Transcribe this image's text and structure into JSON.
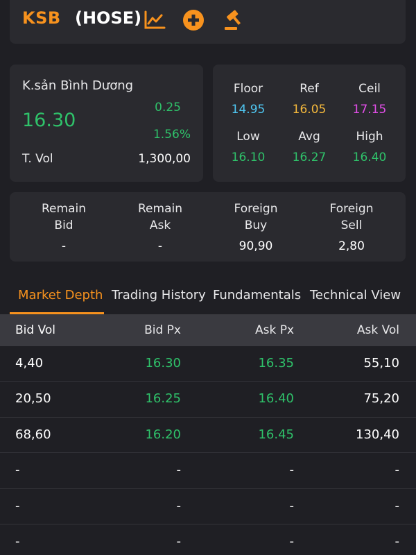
{
  "header": {
    "ticker": "KSB",
    "exchange": "(HOSE)",
    "icons": [
      "chart-icon",
      "add-circle-icon",
      "auction-gavel-icon"
    ],
    "accent_color": "#f7921e"
  },
  "quote": {
    "company": "K.sản Bình Dương",
    "price": "16.30",
    "change": "0.25",
    "change_pct": "1.56%",
    "tvol_label": "T. Vol",
    "tvol_value": "1,300,00"
  },
  "stats": {
    "floor_label": "Floor",
    "floor": "14.95",
    "ref_label": "Ref",
    "ref": "16.05",
    "ceil_label": "Ceil",
    "ceil": "17.15",
    "low_label": "Low",
    "low": "16.10",
    "avg_label": "Avg",
    "avg": "16.27",
    "high_label": "High",
    "high": "16.40"
  },
  "remain": {
    "remain_bid_label_1": "Remain",
    "remain_bid_label_2": "Bid",
    "remain_bid": "-",
    "remain_ask_label_1": "Remain",
    "remain_ask_label_2": "Ask",
    "remain_ask": "-",
    "foreign_buy_label_1": "Foreign",
    "foreign_buy_label_2": "Buy",
    "foreign_buy": "90,90",
    "foreign_sell_label_1": "Foreign",
    "foreign_sell_label_2": "Sell",
    "foreign_sell": "2,80"
  },
  "tabs": [
    {
      "label": "Market Depth",
      "active": true
    },
    {
      "label": "Trading History",
      "active": false
    },
    {
      "label": "Fundamentals",
      "active": false
    },
    {
      "label": "Technical View",
      "active": false
    }
  ],
  "depth": {
    "headers": [
      "Bid Vol",
      "Bid Px",
      "Ask Px",
      "Ask Vol"
    ],
    "rows": [
      [
        "4,40",
        "16.30",
        "16.35",
        "55,10"
      ],
      [
        "20,50",
        "16.25",
        "16.40",
        "75,20"
      ],
      [
        "68,60",
        "16.20",
        "16.45",
        "130,40"
      ],
      [
        "-",
        "-",
        "-",
        "-"
      ],
      [
        "-",
        "-",
        "-",
        "-"
      ],
      [
        "-",
        "-",
        "-",
        "-"
      ]
    ]
  },
  "colors": {
    "up": "#2fc26a",
    "floor": "#4fc7f2",
    "ref": "#f5b93c",
    "ceil": "#e24ee8",
    "background": "#1f1f24",
    "card": "#2a2a2f"
  }
}
